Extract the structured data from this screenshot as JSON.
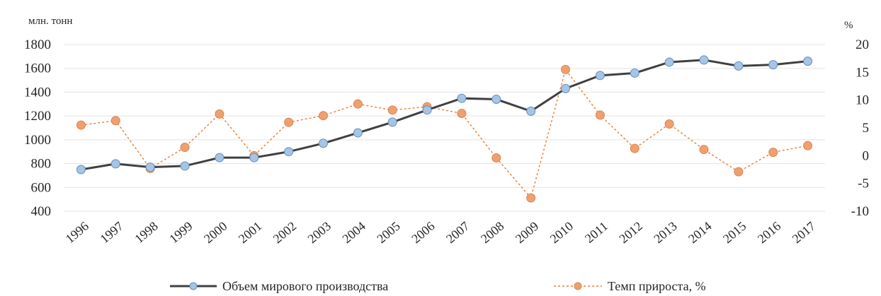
{
  "chart_data": {
    "type": "line",
    "title": "",
    "left_axis_unit": "млн. тонн",
    "right_axis_unit": "%",
    "categories": [
      "1996",
      "1997",
      "1998",
      "1999",
      "2000",
      "2001",
      "2002",
      "2003",
      "2004",
      "2005",
      "2006",
      "2007",
      "2008",
      "2009",
      "2010",
      "2011",
      "2012",
      "2013",
      "2014",
      "2015",
      "2016",
      "2017"
    ],
    "category_labels": [
      "1996",
      "1997",
      "1998",
      "1999",
      "2000",
      "2001",
      "2002",
      "2003",
      "2004",
      "2005",
      "2006",
      "2007",
      "2008",
      "2009",
      "2010",
      "2011",
      "2012",
      "2013",
      "2014",
      "2015",
      "2016",
      "2017"
    ],
    "ylim_left": [
      400,
      1800
    ],
    "yticks_left": [
      "1800",
      "1600",
      "1400",
      "1200",
      "1000",
      "800",
      "600",
      "400"
    ],
    "ylim_right": [
      -10,
      20
    ],
    "yticks_right": [
      "20",
      "15",
      "10",
      "5",
      "0",
      "-5",
      "-10"
    ],
    "grid": true,
    "legend_position": "bottom",
    "series": [
      {
        "name": "Объем мирового производства",
        "axis": "left",
        "color": "#404040",
        "marker_color": "#a8c4e0",
        "values": [
          750,
          798,
          770,
          780,
          850,
          850,
          900,
          970,
          1058,
          1148,
          1250,
          1348,
          1340,
          1240,
          1430,
          1540,
          1560,
          1652,
          1670,
          1620,
          1630,
          1660
        ]
      },
      {
        "name": "Темп прироста, %",
        "axis": "right",
        "color": "#ed7d31",
        "marker_color": "#f0a070",
        "values": [
          5.5,
          6.3,
          -2.3,
          1.5,
          7.5,
          0,
          6,
          7.2,
          9.3,
          8.2,
          8.8,
          7.6,
          -0.4,
          -7.6,
          15.5,
          7.3,
          1.3,
          5.7,
          1.1,
          -2.9,
          0.6,
          1.8
        ]
      }
    ]
  }
}
